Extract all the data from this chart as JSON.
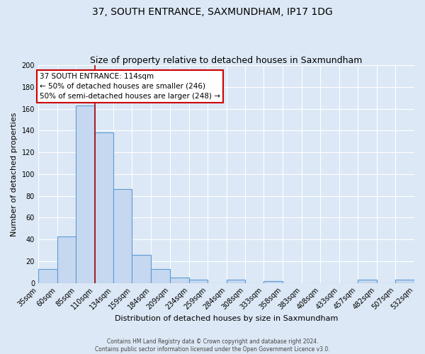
{
  "title": "37, SOUTH ENTRANCE, SAXMUNDHAM, IP17 1DG",
  "subtitle": "Size of property relative to detached houses in Saxmundham",
  "xlabel": "Distribution of detached houses by size in Saxmundham",
  "ylabel": "Number of detached properties",
  "footer_line1": "Contains HM Land Registry data © Crown copyright and database right 2024.",
  "footer_line2": "Contains public sector information licensed under the Open Government Licence v3.0.",
  "bin_edges": [
    35,
    60,
    85,
    110,
    134,
    159,
    184,
    209,
    234,
    259,
    284,
    308,
    333,
    358,
    383,
    408,
    433,
    457,
    482,
    507,
    532
  ],
  "bin_labels": [
    "35sqm",
    "60sqm",
    "85sqm",
    "110sqm",
    "134sqm",
    "159sqm",
    "184sqm",
    "209sqm",
    "234sqm",
    "259sqm",
    "284sqm",
    "308sqm",
    "333sqm",
    "358sqm",
    "383sqm",
    "408sqm",
    "433sqm",
    "457sqm",
    "482sqm",
    "507sqm",
    "532sqm"
  ],
  "counts": [
    13,
    43,
    163,
    138,
    86,
    26,
    13,
    5,
    3,
    0,
    3,
    0,
    2,
    0,
    0,
    0,
    0,
    3,
    0,
    3
  ],
  "bar_color": "#c5d8f0",
  "bar_edge_color": "#5b9bd5",
  "ylim": [
    0,
    200
  ],
  "yticks": [
    0,
    20,
    40,
    60,
    80,
    100,
    120,
    140,
    160,
    180,
    200
  ],
  "red_line_x": 110,
  "annotation_title": "37 SOUTH ENTRANCE: 114sqm",
  "annotation_line1": "← 50% of detached houses are smaller (246)",
  "annotation_line2": "50% of semi-detached houses are larger (248) →",
  "annotation_box_color": "#ffffff",
  "annotation_box_edge": "#cc0000",
  "bg_color": "#dce8f5",
  "plot_bg_color": "#dce8f5",
  "grid_color": "#ffffff",
  "title_fontsize": 10,
  "subtitle_fontsize": 9,
  "axis_label_fontsize": 8,
  "tick_fontsize": 7,
  "annotation_fontsize": 7.5
}
